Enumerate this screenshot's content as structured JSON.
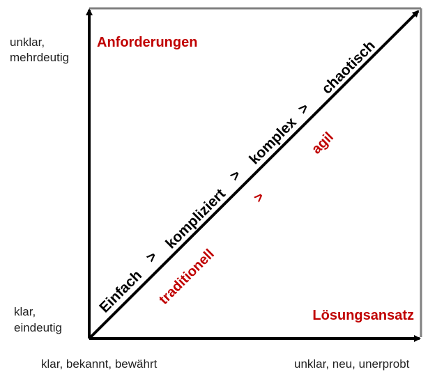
{
  "y_axis": {
    "top_label_line1": "unklar,",
    "top_label_line2": "mehrdeutig",
    "bottom_label_line1": "klar,",
    "bottom_label_line2": "eindeutig"
  },
  "x_axis": {
    "left_label": "klar, bekannt, bewährt",
    "right_label": "unklar, neu, unerprobt"
  },
  "corner_labels": {
    "requirements": "Anforderungen",
    "solution_approach": "Lösungsansatz"
  },
  "diagonal": {
    "stages": [
      "Einfach",
      ">",
      "kompliziert",
      ">",
      "komplex",
      ">",
      "chaotisch"
    ],
    "approaches": [
      "traditionell",
      ">",
      "agil"
    ]
  },
  "colors": {
    "accent_red": "#c00000",
    "axis_black": "#000000",
    "frame_gray": "#808080",
    "text_dark": "#222222"
  }
}
